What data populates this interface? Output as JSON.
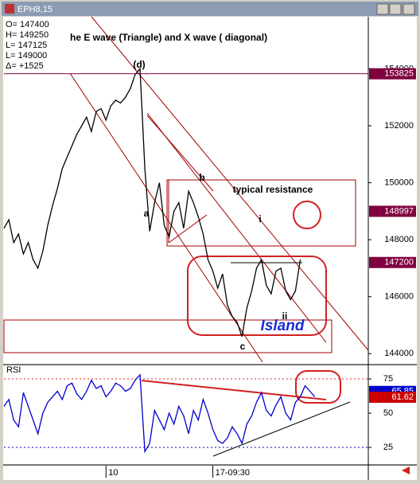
{
  "window_title": "EPH8,15",
  "info": [
    "O= 147400",
    "H= 149250",
    "L= 147125",
    "L= 149000",
    "Δ=  +1525"
  ],
  "chart_data": [
    {
      "type": "line",
      "title": "he E wave (Triangle) and X wave ( diagonal)",
      "color": "#000000",
      "values": [
        148400,
        148700,
        147900,
        148200,
        147500,
        147900,
        147300,
        147000,
        147600,
        148500,
        149200,
        149800,
        150500,
        150900,
        151300,
        151700,
        152000,
        152300,
        151800,
        152500,
        152600,
        152200,
        152700,
        152900,
        152800,
        153000,
        153300,
        153800,
        154000,
        150500,
        148300,
        149300,
        150000,
        148500,
        148100,
        149000,
        149300,
        148400,
        149700,
        149300,
        148800,
        148200,
        147300,
        146900,
        146300,
        146800,
        145700,
        145300,
        145100,
        144600,
        145600,
        146200,
        147000,
        147300,
        146400,
        146100,
        146900,
        147000,
        146200,
        145900,
        146200,
        147300
      ],
      "xlim": [
        0,
        75
      ],
      "ylim": [
        143700,
        155800
      ],
      "yticks": [
        144000,
        146000,
        148000,
        150000,
        152000,
        154000
      ],
      "markers": [
        {
          "value": 153825,
          "color": "#800040",
          "hline": true
        },
        {
          "value": 148997,
          "color": "#800040",
          "hline": false
        },
        {
          "value": 147200,
          "color": "#800040",
          "hline": false
        }
      ],
      "annotations": [
        "(d)",
        "a",
        "b",
        "c",
        "i",
        "ii",
        "typical resistance",
        "Island"
      ]
    },
    {
      "type": "line",
      "title": "RSI",
      "color": "#0000cc",
      "values": [
        55,
        60,
        45,
        40,
        65,
        55,
        45,
        35,
        50,
        58,
        62,
        66,
        60,
        70,
        72,
        64,
        60,
        66,
        74,
        68,
        70,
        62,
        66,
        72,
        70,
        66,
        68,
        74,
        78,
        22,
        28,
        52,
        45,
        38,
        50,
        42,
        55,
        48,
        35,
        52,
        45,
        60,
        50,
        38,
        30,
        28,
        32,
        40,
        35,
        28,
        42,
        48,
        58,
        65,
        52,
        48,
        56,
        62,
        50,
        45,
        58,
        62,
        70,
        66,
        62
      ],
      "xlim": [
        0,
        75
      ],
      "ylim": [
        13.4,
        84.3
      ],
      "yticks": [
        25,
        50,
        75
      ],
      "xticks": [
        {
          "value": 21,
          "label": "10"
        },
        {
          "value": 43,
          "label": "17-09:30"
        }
      ],
      "markers": [
        {
          "value": 65.85,
          "color": "#0000cc",
          "hline": false
        },
        {
          "value": 61.62,
          "color": "#cc0000",
          "hline": false
        }
      ]
    }
  ]
}
